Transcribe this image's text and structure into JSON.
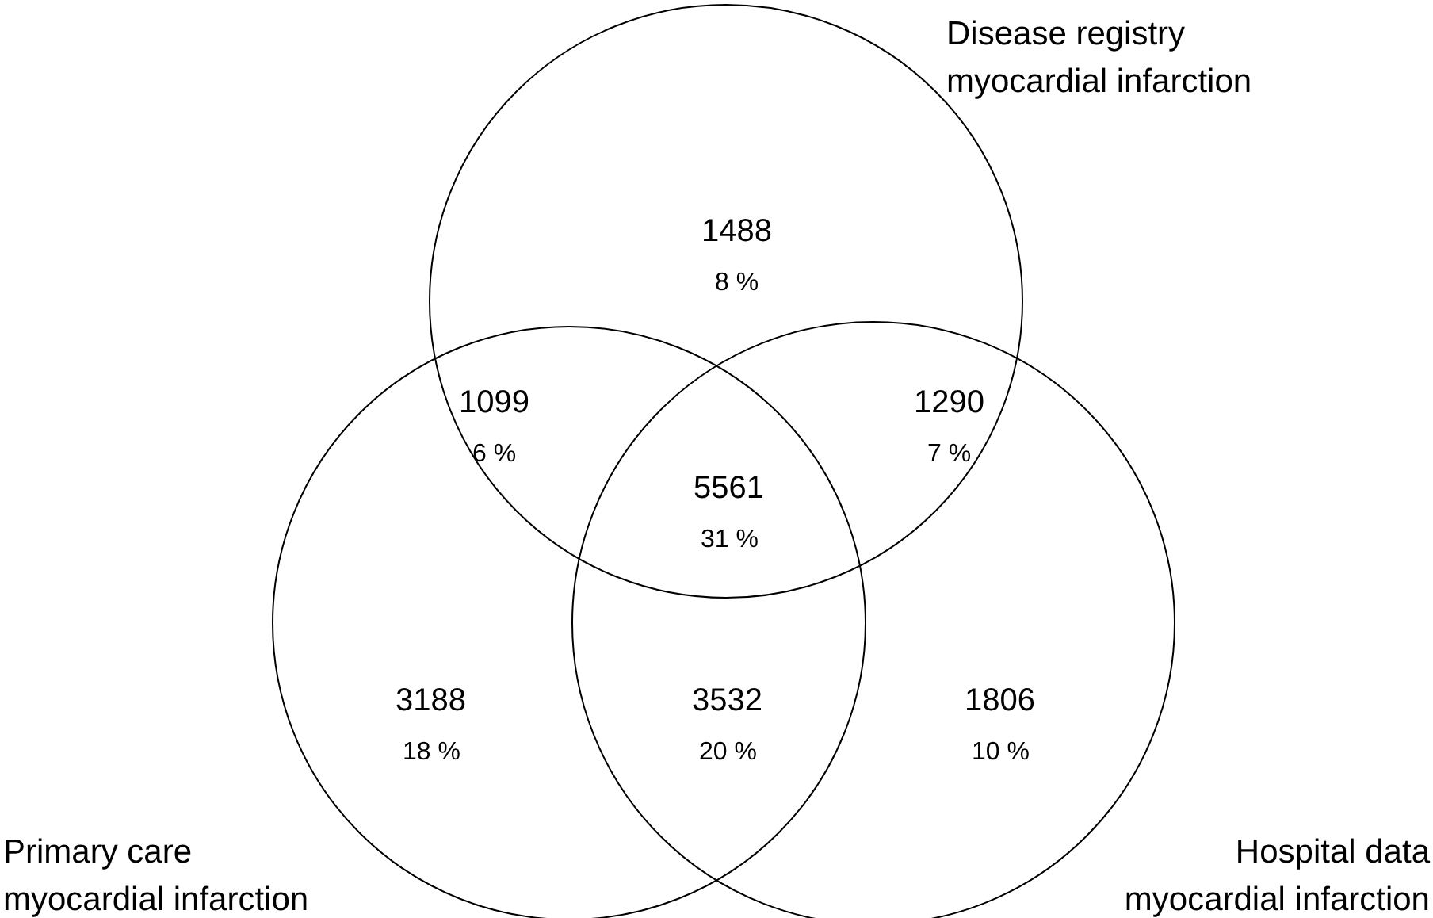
{
  "chart_data": {
    "type": "other",
    "categories": [
      null,
      null,
      null,
      null,
      null,
      null,
      null
    ],
    "values": [
      1488,
      1099,
      1290,
      5561,
      3188,
      3532,
      1806
    ],
    "data_labels": true,
    "annotations": [
      "Disease registry myocardial infarction",
      "Primary care myocardial infarction",
      "Hospital data myocardial infarction",
      "8 %",
      "6 %",
      "7 %",
      "31 %",
      "18 %",
      "20 %",
      "10 %"
    ]
  }
}
